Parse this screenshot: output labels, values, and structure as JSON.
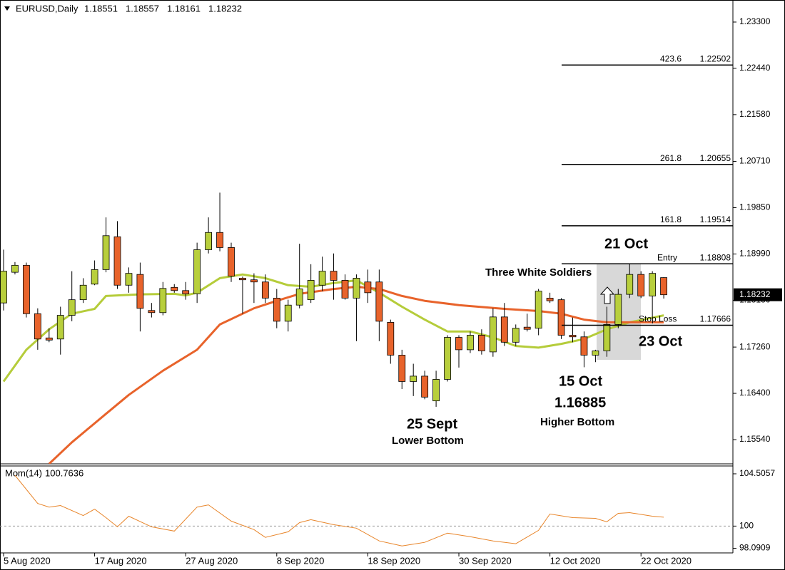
{
  "chart_data": [
    {
      "type": "candlestick",
      "title": "EURUSD,Daily",
      "categories": [
        "5 Aug 2020",
        null,
        null,
        null,
        null,
        null,
        null,
        null,
        "17 Aug 2020",
        null,
        null,
        null,
        null,
        null,
        null,
        null,
        "27 Aug 2020",
        null,
        null,
        null,
        null,
        null,
        null,
        null,
        "8 Sep 2020",
        null,
        null,
        null,
        null,
        null,
        null,
        null,
        "18 Sep 2020",
        null,
        null,
        null,
        null,
        null,
        null,
        null,
        "30 Sep 2020",
        null,
        null,
        null,
        null,
        null,
        null,
        null,
        "12 Oct 2020",
        null,
        null,
        null,
        null,
        null,
        null,
        null,
        "22 Oct 2020",
        null,
        null
      ],
      "open": [
        1.1808,
        1.1865,
        1.1878,
        1.1788,
        1.1743,
        1.1741,
        1.1785,
        1.1814,
        1.1843,
        1.187,
        1.1931,
        1.1841,
        1.1861,
        1.1794,
        1.179,
        1.1837,
        1.1831,
        1.1825,
        1.1907,
        1.1939,
        1.1911,
        1.1854,
        1.1851,
        1.1847,
        1.1817,
        1.1774,
        1.1804,
        1.1814,
        1.1841,
        1.1867,
        1.185,
        1.1817,
        1.1847,
        1.1847,
        1.1772,
        1.1711,
        1.1662,
        1.1672,
        1.1626,
        1.1666,
        1.1744,
        1.1721,
        1.1748,
        1.1717,
        1.1782,
        1.1735,
        1.1763,
        1.1761,
        1.1817,
        1.1814,
        1.1748,
        1.1745,
        1.1711,
        1.1719,
        1.1768,
        1.1824,
        1.1861,
        1.1821,
        1.18551
      ],
      "high": [
        1.1907,
        1.1884,
        1.1883,
        1.1798,
        1.1761,
        1.1801,
        1.1867,
        1.1854,
        1.1887,
        1.1967,
        1.196,
        1.1874,
        1.1883,
        1.1808,
        1.1847,
        1.1843,
        1.1847,
        1.192,
        1.1967,
        1.2013,
        1.192,
        1.1857,
        1.1863,
        1.1861,
        1.1834,
        1.1814,
        1.1918,
        1.188,
        1.1894,
        1.19,
        1.1861,
        1.1861,
        1.187,
        1.187,
        1.1777,
        1.1721,
        1.1695,
        1.1682,
        1.1682,
        1.1748,
        1.1748,
        1.1755,
        1.1759,
        1.1798,
        1.1808,
        1.1768,
        1.1788,
        1.1834,
        1.1827,
        1.1817,
        1.1781,
        1.1755,
        1.1721,
        1.1801,
        1.1834,
        1.188,
        1.1867,
        1.1867,
        1.18557
      ],
      "low": [
        1.1794,
        1.1861,
        1.1781,
        1.1721,
        1.1735,
        1.1712,
        1.1774,
        1.1808,
        1.1841,
        1.1865,
        1.1834,
        1.1827,
        1.1755,
        1.1781,
        1.1785,
        1.1827,
        1.1814,
        1.1808,
        1.19,
        1.1904,
        1.1847,
        1.1788,
        1.1808,
        1.1808,
        1.1761,
        1.1755,
        1.1798,
        1.1808,
        1.183,
        1.1814,
        1.1814,
        1.1737,
        1.1808,
        1.1737,
        1.1695,
        1.1648,
        1.1635,
        1.1629,
        1.1615,
        1.1662,
        1.1688,
        1.1715,
        1.1712,
        1.1708,
        1.1728,
        1.1728,
        1.1755,
        1.1748,
        1.1808,
        1.1741,
        1.1735,
        1.16885,
        1.1698,
        1.1708,
        1.1761,
        1.1817,
        1.1817,
        1.1781,
        1.18161
      ],
      "close": [
        1.1867,
        1.1878,
        1.1788,
        1.1741,
        1.1739,
        1.1785,
        1.1814,
        1.1841,
        1.187,
        1.1933,
        1.1841,
        1.1863,
        1.1798,
        1.179,
        1.1835,
        1.1831,
        1.1825,
        1.1907,
        1.1939,
        1.1911,
        1.1858,
        1.1851,
        1.1847,
        1.1817,
        1.1774,
        1.1804,
        1.1834,
        1.185,
        1.1867,
        1.185,
        1.1817,
        1.1854,
        1.1827,
        1.1774,
        1.1711,
        1.1662,
        1.1672,
        1.1633,
        1.1666,
        1.1744,
        1.1721,
        1.1748,
        1.1719,
        1.1782,
        1.1735,
        1.1761,
        1.1759,
        1.183,
        1.1812,
        1.1748,
        1.1745,
        1.1711,
        1.1719,
        1.1768,
        1.1824,
        1.1861,
        1.1821,
        1.1863,
        1.18232
      ],
      "up_color": "#b8cf3c",
      "down_color": "#e8632b",
      "series": [
        {
          "color": "#b5cc3a",
          "x": [
            0,
            2,
            4,
            6,
            8,
            9,
            12,
            15,
            16,
            17,
            19,
            21,
            23,
            25,
            27,
            29,
            31,
            33,
            35,
            37,
            39,
            41,
            43,
            45,
            47,
            49,
            51,
            53,
            55,
            58
          ],
          "values": [
            1.1662,
            1.1721,
            1.1759,
            1.1788,
            1.1797,
            1.1821,
            1.1824,
            1.1825,
            1.1822,
            1.1827,
            1.1854,
            1.1861,
            1.1854,
            1.1841,
            1.1838,
            1.1845,
            1.185,
            1.1827,
            1.1801,
            1.1777,
            1.1755,
            1.1755,
            1.1744,
            1.1728,
            1.1725,
            1.1732,
            1.1741,
            1.1759,
            1.1772,
            1.1785
          ]
        },
        {
          "color": "#e8632b",
          "x": [
            4,
            6,
            9,
            11,
            14,
            17,
            19,
            22,
            24,
            26,
            29,
            31,
            33,
            35,
            37,
            40,
            44,
            47,
            49,
            51,
            53,
            55,
            58
          ],
          "values": [
            1.1509,
            1.1549,
            1.1602,
            1.1637,
            1.1682,
            1.1721,
            1.1768,
            1.1798,
            1.1812,
            1.1825,
            1.1834,
            1.1838,
            1.1834,
            1.1821,
            1.1812,
            1.1804,
            1.1797,
            1.1793,
            1.1788,
            1.1777,
            1.1772,
            1.1772,
            1.1772
          ]
        }
      ],
      "ylim": [
        1.1509,
        1.2371
      ],
      "yticks": [
        {
          "value": 1.233,
          "label": "1.23300"
        },
        {
          "value": 1.2244,
          "label": "1.22440"
        },
        {
          "value": 1.2158,
          "label": "1.21580"
        },
        {
          "value": 1.2071,
          "label": "1.20710"
        },
        {
          "value": 1.1985,
          "label": "1.19850"
        },
        {
          "value": 1.1899,
          "label": "1.18990"
        },
        {
          "value": 1.1813,
          "label": "1.18130"
        },
        {
          "value": 1.1726,
          "label": "1.17260"
        },
        {
          "value": 1.164,
          "label": "1.16400"
        },
        {
          "value": 1.1554,
          "label": "1.15540"
        }
      ],
      "fib_levels": [
        {
          "label": 423.6,
          "price": 1.22502
        },
        {
          "label": 261.8,
          "price": 1.20655
        },
        {
          "label": 161.8,
          "price": 1.19514
        },
        {
          "label": "Entry",
          "price": 1.18808
        },
        {
          "label": "Stop Loss",
          "price": 1.17666
        }
      ],
      "annotations": [
        "21 Oct",
        "Three White Soldiers",
        "23 Oct",
        "15 Oct",
        "1.16885",
        "Higher Bottom",
        "25 Sept",
        "Lower Bottom"
      ]
    },
    {
      "type": "line",
      "title": "Mom(14)",
      "series": [
        {
          "name": "Mom(14)",
          "color": "#e8852a",
          "x": [
            1,
            3,
            4,
            5,
            7,
            8,
            9,
            10,
            11,
            13,
            15,
            17,
            18,
            20,
            22,
            23,
            25,
            26,
            27,
            29,
            31,
            33,
            35,
            37,
            39,
            41,
            43,
            45,
            47,
            48,
            50,
            52,
            53,
            54,
            55,
            57,
            58
          ],
          "values": [
            104.38,
            101.95,
            101.64,
            101.77,
            100.91,
            101.46,
            100.73,
            99.94,
            100.85,
            99.94,
            99.57,
            101.64,
            101.83,
            100.43,
            99.7,
            99.03,
            99.51,
            100.3,
            100.55,
            100.12,
            99.82,
            98.72,
            98.29,
            98.6,
            99.39,
            99.09,
            98.72,
            98.48,
            99.63,
            101.04,
            100.73,
            100.67,
            100.37,
            101.1,
            101.16,
            100.85,
            100.7636
          ]
        }
      ],
      "ylim": [
        97.69,
        105.18
      ],
      "yticks": [
        104.5057,
        100,
        98.0909
      ],
      "level": 100
    }
  ]
}
